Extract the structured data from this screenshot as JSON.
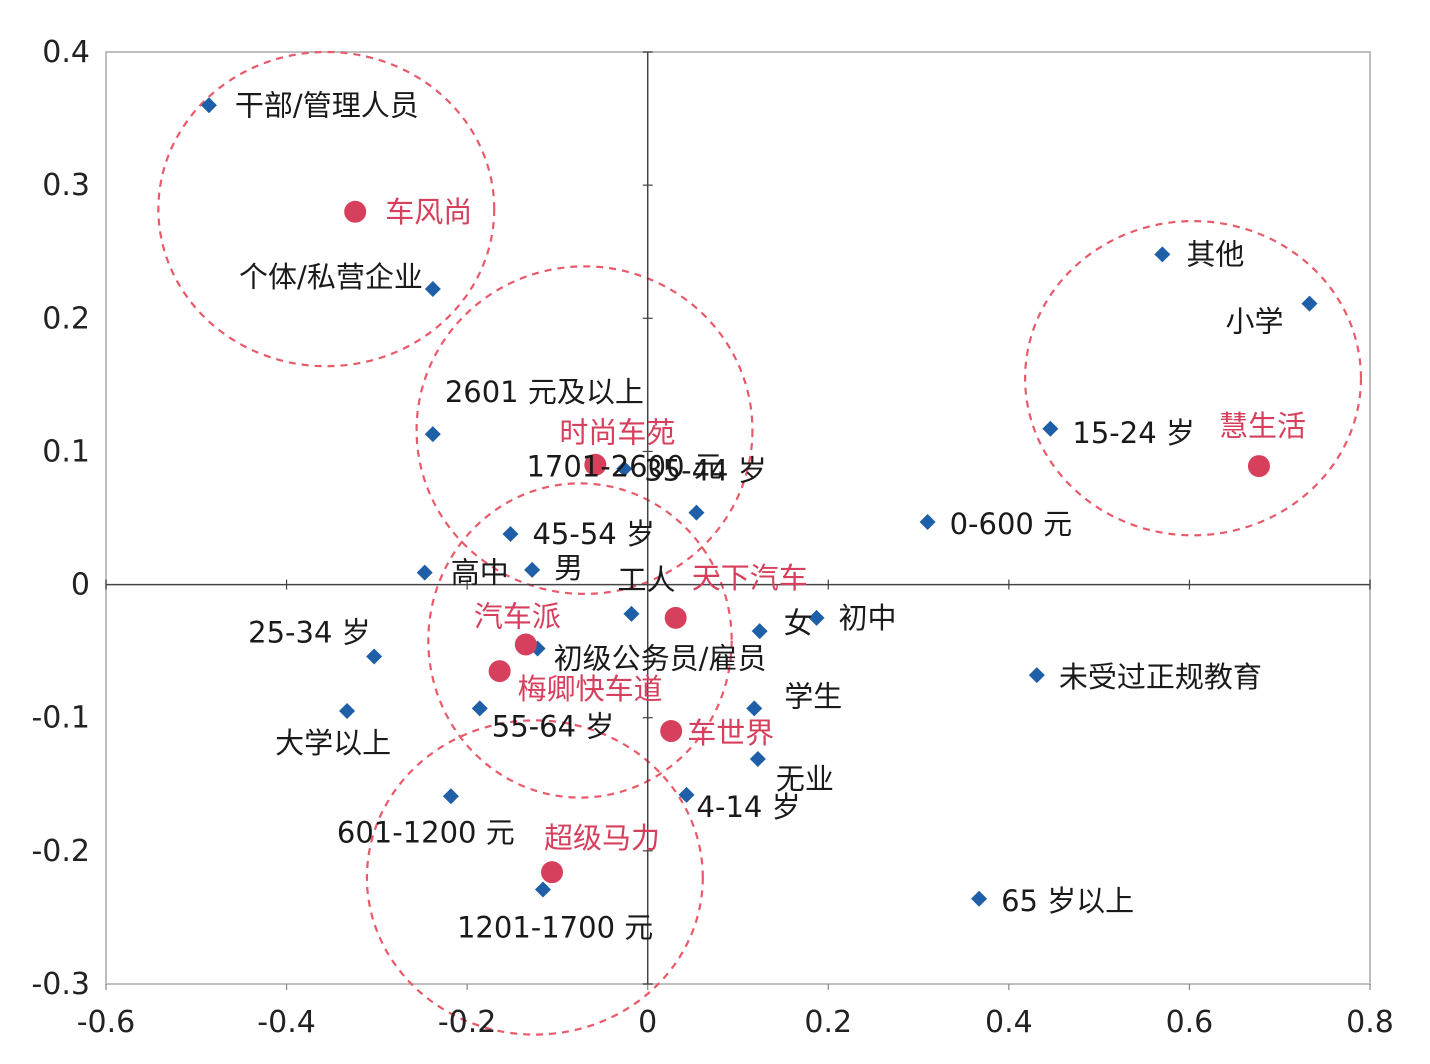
{
  "chart_data": {
    "type": "scatter",
    "title": "",
    "xlabel": "",
    "ylabel": "",
    "xlim": [
      -0.6,
      0.8
    ],
    "ylim": [
      -0.3,
      0.4
    ],
    "x_ticks": [
      "-0.6",
      "-0.4",
      "-0.2",
      "0",
      "0.2",
      "0.4",
      "0.6",
      "0.8"
    ],
    "y_ticks": [
      "0.4",
      "0.3",
      "0.2",
      "0.1",
      "0",
      "-0.1",
      "-0.2",
      "-0.3"
    ],
    "grid": false,
    "legend": "none",
    "colors": {
      "attribute": "#1f5fa8",
      "brand": "#d6405d",
      "circle": "#e85a6a",
      "axis": "#444444"
    },
    "series": [
      {
        "marker": "diamond",
        "points": [
          {
            "label": "干部/管理人员",
            "x": -0.486,
            "y": 0.36
          },
          {
            "label": "个体/私营企业",
            "x": -0.238,
            "y": 0.222
          },
          {
            "label": "2601 元及以上",
            "x": -0.238,
            "y": 0.113
          },
          {
            "label": "35-44 岁",
            "x": -0.026,
            "y": 0.087
          },
          {
            "label": "1701-2600 元",
            "x": 0.054,
            "y": 0.054
          },
          {
            "label": "45-54 岁",
            "x": -0.152,
            "y": 0.038
          },
          {
            "label": "高中",
            "x": -0.247,
            "y": 0.009
          },
          {
            "label": "男",
            "x": -0.128,
            "y": 0.011
          },
          {
            "label": "工人",
            "x": -0.018,
            "y": -0.022
          },
          {
            "label": "女",
            "x": 0.124,
            "y": -0.035
          },
          {
            "label": "初中",
            "x": 0.187,
            "y": -0.025
          },
          {
            "label": "初级公务员/雇员",
            "x": -0.122,
            "y": -0.048
          },
          {
            "label": "25-34 岁",
            "x": -0.303,
            "y": -0.054
          },
          {
            "label": "大学以上",
            "x": -0.333,
            "y": -0.095
          },
          {
            "label": "55-64 岁",
            "x": -0.186,
            "y": -0.093
          },
          {
            "label": "学生",
            "x": 0.118,
            "y": -0.093
          },
          {
            "label": "无业",
            "x": 0.122,
            "y": -0.131
          },
          {
            "label": "4-14 岁",
            "x": 0.043,
            "y": -0.158
          },
          {
            "label": "601-1200 元",
            "x": -0.218,
            "y": -0.159
          },
          {
            "label": "1201-1700 元",
            "x": -0.116,
            "y": -0.229
          },
          {
            "label": "其他",
            "x": 0.57,
            "y": 0.248
          },
          {
            "label": "小学",
            "x": 0.733,
            "y": 0.211
          },
          {
            "label": "15-24 岁",
            "x": 0.446,
            "y": 0.117
          },
          {
            "label": "0-600 元",
            "x": 0.31,
            "y": 0.047
          },
          {
            "label": "未受过正规教育",
            "x": 0.431,
            "y": -0.068
          },
          {
            "label": "65 岁以上",
            "x": 0.367,
            "y": -0.236
          }
        ]
      },
      {
        "marker": "circle",
        "points": [
          {
            "label": "车风尚",
            "x": -0.324,
            "y": 0.28
          },
          {
            "label": "时尚车苑",
            "x": -0.058,
            "y": 0.09
          },
          {
            "label": "天下汽车",
            "x": 0.031,
            "y": -0.025
          },
          {
            "label": "汽车派",
            "x": -0.135,
            "y": -0.045
          },
          {
            "label": "梅卿快车道",
            "x": -0.164,
            "y": -0.065
          },
          {
            "label": "车世界",
            "x": 0.026,
            "y": -0.11
          },
          {
            "label": "超级马力",
            "x": -0.106,
            "y": -0.216
          },
          {
            "label": "慧生活",
            "x": 0.677,
            "y": 0.089
          }
        ]
      }
    ],
    "groups": [
      {
        "center": [
          -0.356,
          0.282
        ],
        "rx": 0.186,
        "ry": 0.118
      },
      {
        "center": [
          -0.07,
          0.116
        ],
        "rx": 0.186,
        "ry": 0.123
      },
      {
        "center": [
          0.604,
          0.155
        ],
        "rx": 0.186,
        "ry": 0.118
      },
      {
        "center": [
          -0.075,
          -0.042
        ],
        "rx": 0.168,
        "ry": 0.118
      },
      {
        "center": [
          -0.125,
          -0.22
        ],
        "rx": 0.186,
        "ry": 0.118
      }
    ]
  }
}
